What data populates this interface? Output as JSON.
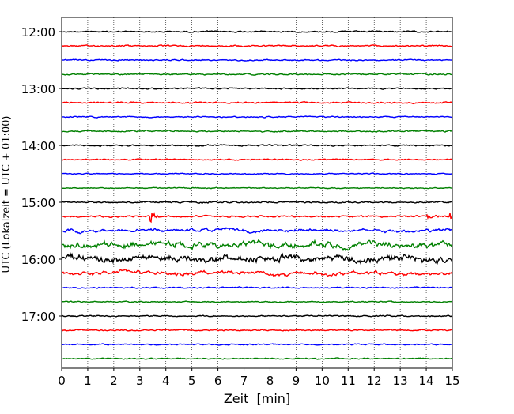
{
  "chart_data": {
    "type": "line",
    "title": "",
    "xlabel": "Zeit  [min]",
    "ylabel": "UTC (Lokalzeit = UTC + 01:00)",
    "xlim": [
      0,
      15
    ],
    "x_ticks": [
      "0",
      "1",
      "2",
      "3",
      "4",
      "5",
      "6",
      "7",
      "8",
      "9",
      "10",
      "11",
      "12",
      "13",
      "14",
      "15"
    ],
    "y_tick_labels": [
      "12:00",
      "13:00",
      "14:00",
      "15:00",
      "16:00",
      "17:00"
    ],
    "grid": "vertical dotted at each minute",
    "line_interval_min": 15,
    "colors": [
      "#000000",
      "#ff0000",
      "#0000ff",
      "#008000"
    ],
    "traces": [
      {
        "start": "12:00",
        "amplitude": 1.3
      },
      {
        "start": "12:15",
        "amplitude": 1.3
      },
      {
        "start": "12:30",
        "amplitude": 1.2
      },
      {
        "start": "12:45",
        "amplitude": 1.3
      },
      {
        "start": "13:00",
        "amplitude": 1.3
      },
      {
        "start": "13:15",
        "amplitude": 1.4
      },
      {
        "start": "13:30",
        "amplitude": 1.1
      },
      {
        "start": "13:45",
        "amplitude": 1.3
      },
      {
        "start": "14:00",
        "amplitude": 1.4
      },
      {
        "start": "14:15",
        "amplitude": 1.2
      },
      {
        "start": "14:30",
        "amplitude": 1.0
      },
      {
        "start": "14:45",
        "amplitude": 1.0
      },
      {
        "start": "15:00",
        "amplitude": 1.4
      },
      {
        "start": "15:15",
        "amplitude": 1.6
      },
      {
        "start": "15:30",
        "amplitude": 2.2
      },
      {
        "start": "15:45",
        "amplitude": 4.5
      },
      {
        "start": "16:00",
        "amplitude": 5.0
      },
      {
        "start": "16:15",
        "amplitude": 2.6
      },
      {
        "start": "16:30",
        "amplitude": 1.3
      },
      {
        "start": "16:45",
        "amplitude": 1.1
      },
      {
        "start": "17:00",
        "amplitude": 1.2
      },
      {
        "start": "17:15",
        "amplitude": 1.2
      },
      {
        "start": "17:30",
        "amplitude": 1.2
      },
      {
        "start": "17:45",
        "amplitude": 1.1
      }
    ],
    "events": [
      {
        "trace": 13,
        "time_min": 3.4,
        "amplitude": 7
      },
      {
        "trace": 13,
        "time_min": 14.0,
        "amplitude": 4
      },
      {
        "trace": 13,
        "time_min": 14.9,
        "amplitude": 4
      }
    ]
  }
}
